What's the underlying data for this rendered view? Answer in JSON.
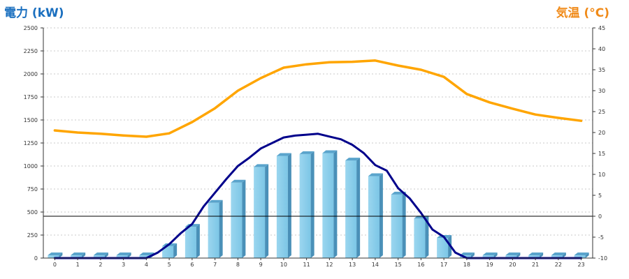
{
  "chart_data": {
    "type": "bar",
    "left_axis_title": "電力 (kW)",
    "right_axis_title": "気温 (°C)",
    "left_axis": {
      "range": [
        0,
        2500
      ],
      "ticks": [
        "0",
        "250",
        "500",
        "750",
        "1000",
        "1250",
        "1500",
        "1750",
        "2000",
        "2250",
        "2500"
      ]
    },
    "right_axis": {
      "range": [
        -10,
        45
      ],
      "ticks": [
        "-10",
        "-5",
        "0",
        "5",
        "10",
        "15",
        "20",
        "25",
        "30",
        "35",
        "40",
        "45"
      ]
    },
    "categories": [
      "0",
      "1",
      "2",
      "3",
      "4",
      "5",
      "6",
      "7",
      "8",
      "9",
      "10",
      "11",
      "12",
      "13",
      "14",
      "15",
      "16",
      "17",
      "18",
      "19",
      "20",
      "21",
      "22",
      "23"
    ],
    "grid": true,
    "series": [
      {
        "type": "bar",
        "axis": "left",
        "color": "#87ceeb",
        "values": [
          30,
          30,
          30,
          30,
          30,
          130,
          340,
          600,
          820,
          990,
          1110,
          1130,
          1140,
          1060,
          890,
          690,
          430,
          220,
          30,
          30,
          30,
          30,
          30,
          30
        ]
      },
      {
        "type": "line",
        "axis": "left",
        "color": "#00008b",
        "x": [
          0,
          1,
          2,
          3,
          4,
          4.5,
          5,
          5.5,
          6,
          6.5,
          7,
          7.5,
          8,
          8.5,
          9,
          9.5,
          10,
          10.5,
          11,
          11.5,
          12,
          12.5,
          13,
          13.5,
          14,
          14.5,
          15,
          15.5,
          16,
          16.5,
          17,
          17.5,
          18,
          19,
          20,
          21,
          22,
          23
        ],
        "values": [
          0,
          0,
          0,
          0,
          0,
          60,
          150,
          270,
          370,
          560,
          710,
          860,
          1000,
          1090,
          1190,
          1250,
          1310,
          1330,
          1340,
          1350,
          1320,
          1290,
          1230,
          1140,
          1010,
          950,
          760,
          650,
          490,
          310,
          230,
          60,
          0,
          0,
          0,
          0,
          0,
          0
        ]
      },
      {
        "type": "line",
        "axis": "right",
        "color": "#ffa500",
        "values": [
          20.5,
          20.0,
          19.7,
          19.3,
          19.0,
          19.8,
          22.5,
          25.8,
          30.0,
          33.0,
          35.5,
          36.3,
          36.8,
          36.9,
          37.2,
          36.0,
          35.0,
          33.3,
          29.2,
          27.2,
          25.7,
          24.3,
          23.5,
          22.8
        ]
      }
    ],
    "zero_line": {
      "axis": "right",
      "value": 0
    }
  }
}
